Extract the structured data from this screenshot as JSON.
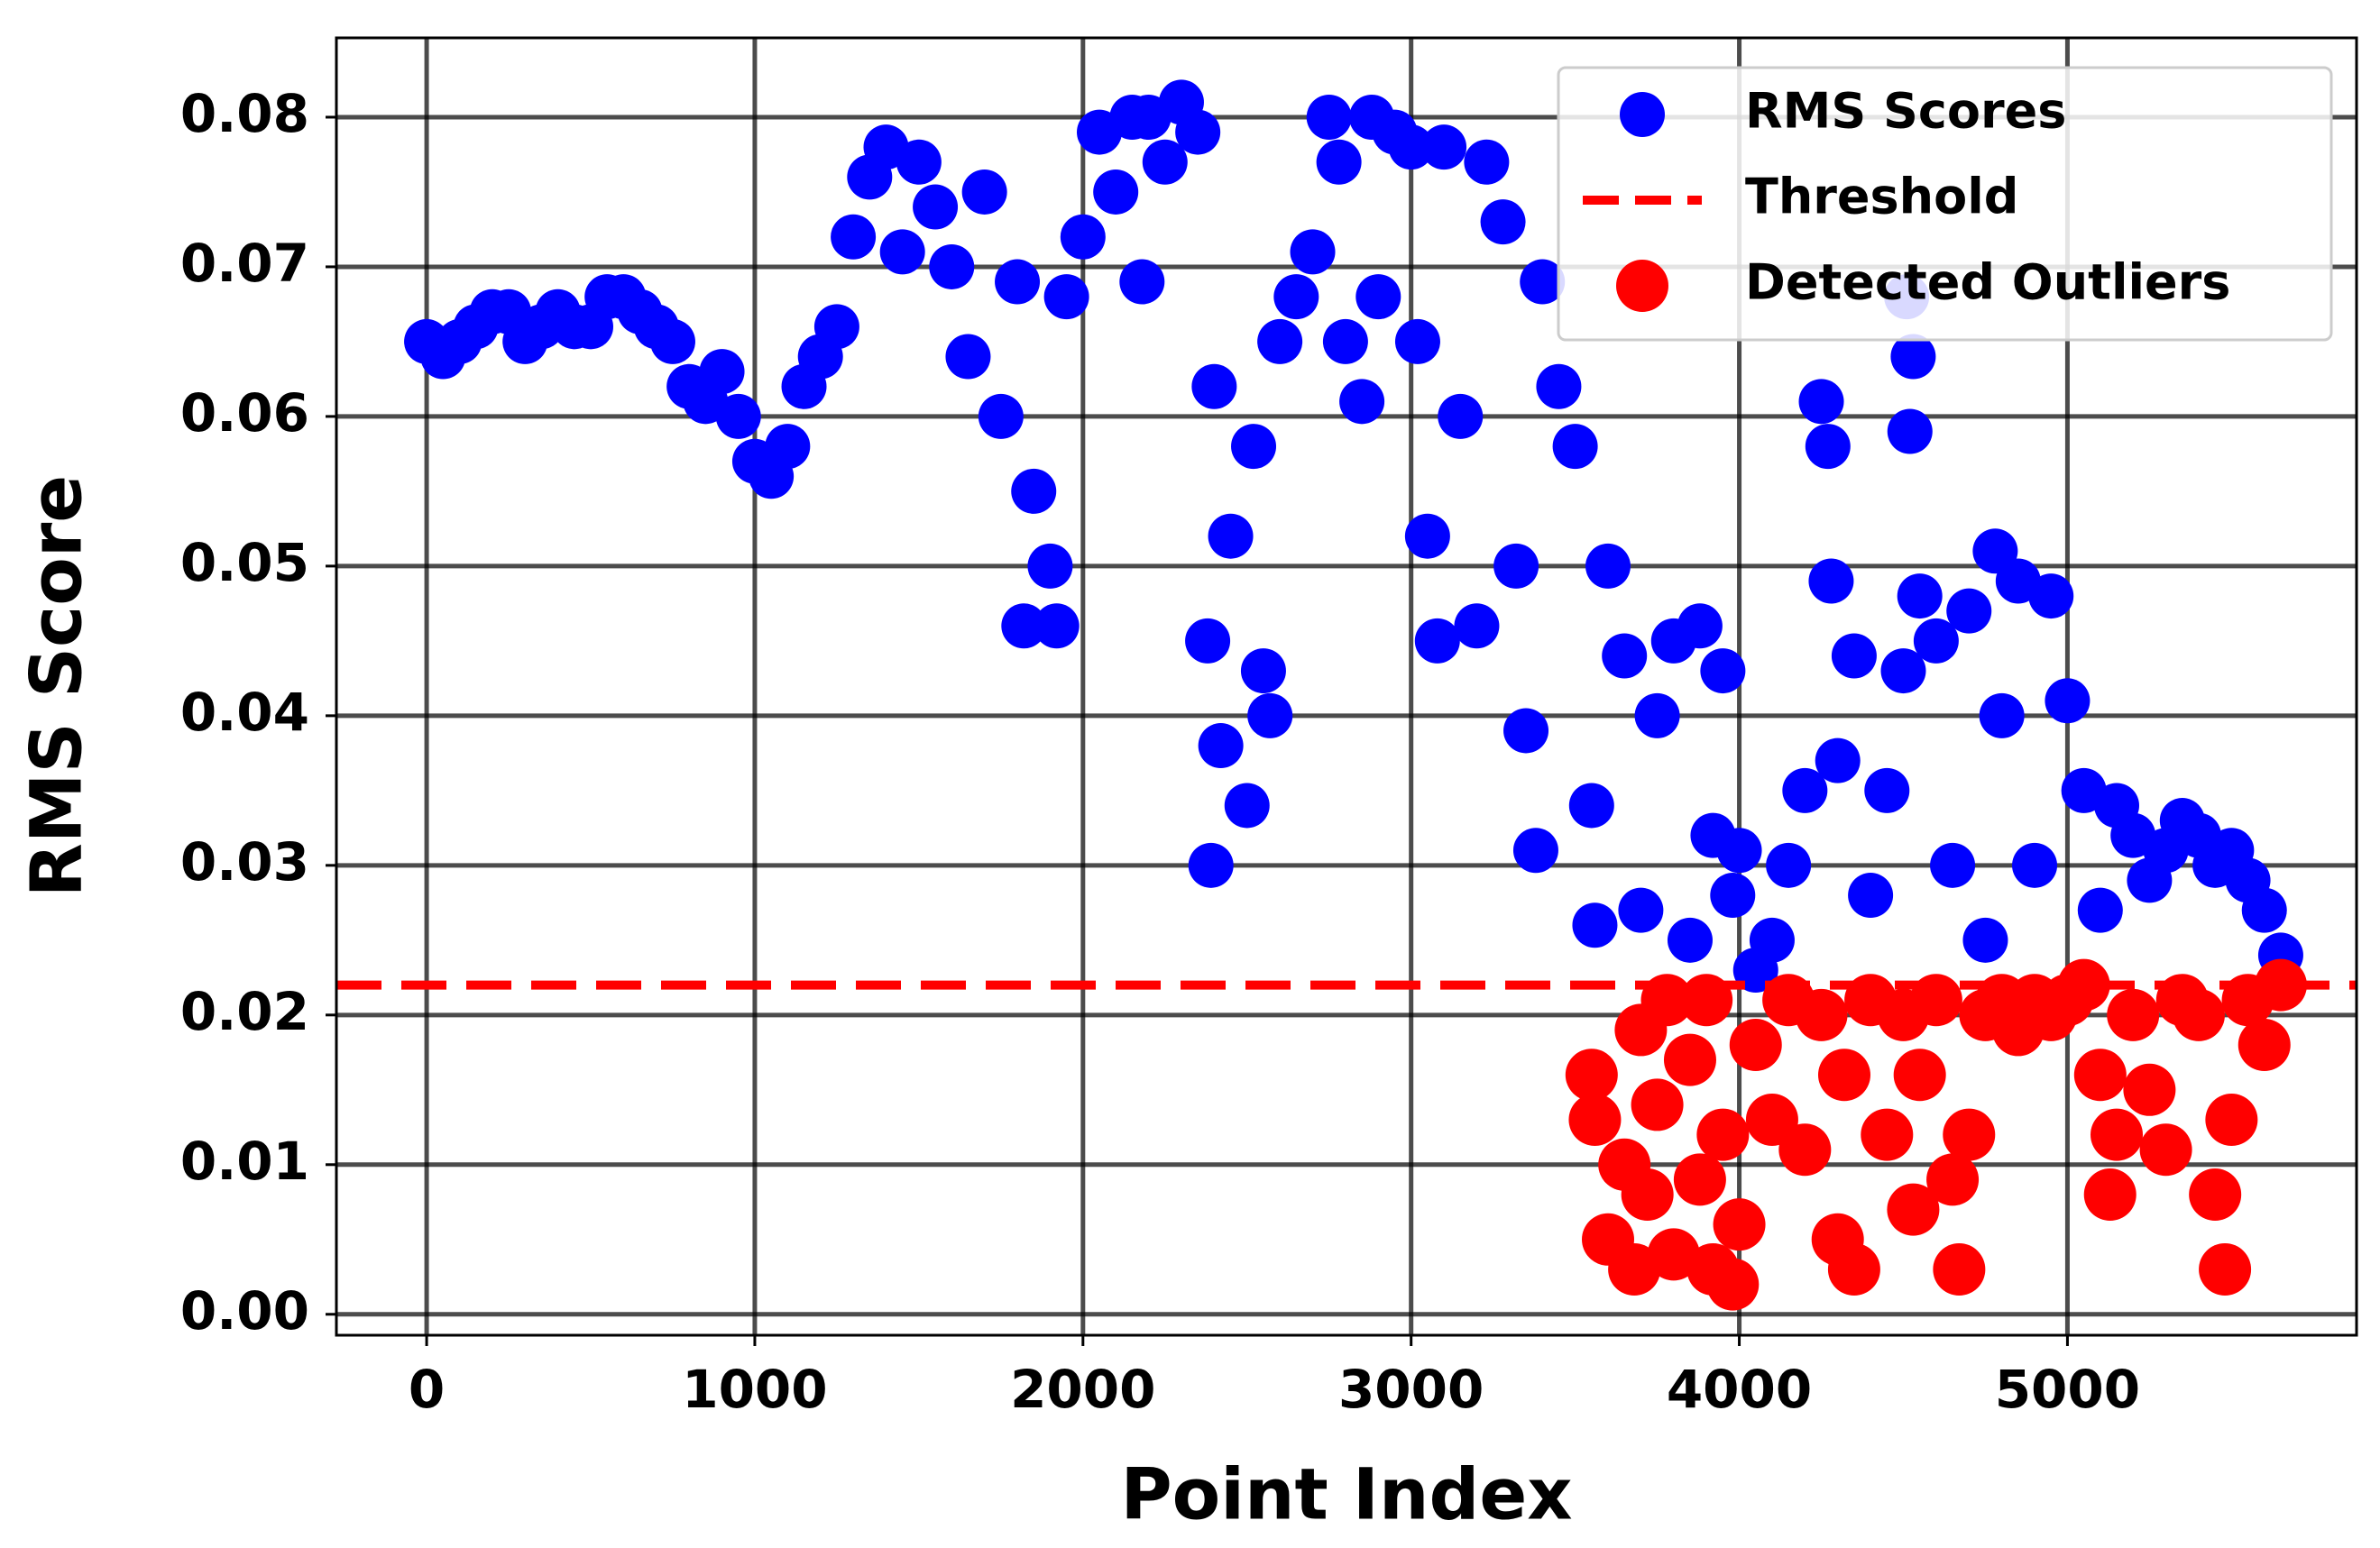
{
  "chart_data": {
    "type": "scatter",
    "xlabel": "Point Index",
    "ylabel": "RMS Score",
    "xlim": [
      -275,
      5881
    ],
    "ylim": [
      -0.0014,
      0.0853
    ],
    "xticks": [
      0,
      1000,
      2000,
      3000,
      4000,
      5000
    ],
    "yticks": [
      {
        "value": 0,
        "label": "0.00"
      },
      0.01,
      0.02,
      0.03,
      0.04,
      0.05,
      0.06,
      0.07,
      0.08
    ],
    "grid": true,
    "legend": "upper right",
    "threshold": {
      "name": "Threshold",
      "value": 0.022,
      "color": "#ff0000"
    },
    "series": [
      {
        "name": "RMS Scores",
        "color": "#0000ff",
        "x": [
          0,
          50,
          100,
          150,
          200,
          250,
          300,
          350,
          400,
          450,
          500,
          550,
          600,
          650,
          700,
          750,
          800,
          850,
          900,
          950,
          1000,
          1050,
          1100,
          1150,
          1200,
          1250,
          1300,
          1350,
          1400,
          1450,
          1500,
          1550,
          1600,
          1650,
          1700,
          1750,
          1800,
          1820,
          1850,
          1900,
          1920,
          1950,
          2000,
          2050,
          2100,
          2150,
          2180,
          2200,
          2250,
          2300,
          2350,
          2380,
          2390,
          2400,
          2420,
          2450,
          2500,
          2520,
          2550,
          2570,
          2600,
          2650,
          2700,
          2750,
          2780,
          2800,
          2850,
          2880,
          2900,
          2950,
          3000,
          3020,
          3050,
          3080,
          3100,
          3150,
          3200,
          3230,
          3280,
          3320,
          3350,
          3380,
          3400,
          3450,
          3500,
          3550,
          3560,
          3600,
          3650,
          3700,
          3750,
          3800,
          3850,
          3880,
          3920,
          3950,
          3980,
          4000,
          4050,
          4100,
          4150,
          4200,
          4250,
          4270,
          4280,
          4300,
          4350,
          4400,
          4450,
          4500,
          4510,
          4520,
          4530,
          4550,
          4600,
          4650,
          4700,
          4750,
          4780,
          4800,
          4850,
          4900,
          4950,
          5000,
          5050,
          5100,
          5150,
          5200,
          5250,
          5300,
          5350,
          5400,
          5450,
          5500,
          5550,
          5600,
          5650
        ],
        "values": [
          0.065,
          0.064,
          0.065,
          0.066,
          0.067,
          0.067,
          0.065,
          0.066,
          0.067,
          0.066,
          0.066,
          0.068,
          0.068,
          0.067,
          0.066,
          0.065,
          0.062,
          0.061,
          0.063,
          0.06,
          0.057,
          0.056,
          0.058,
          0.062,
          0.064,
          0.066,
          0.072,
          0.076,
          0.078,
          0.071,
          0.077,
          0.074,
          0.07,
          0.064,
          0.075,
          0.06,
          0.069,
          0.046,
          0.055,
          0.05,
          0.046,
          0.068,
          0.072,
          0.079,
          0.075,
          0.08,
          0.069,
          0.08,
          0.077,
          0.081,
          0.079,
          0.045,
          0.03,
          0.062,
          0.038,
          0.052,
          0.034,
          0.058,
          0.043,
          0.04,
          0.065,
          0.068,
          0.071,
          0.08,
          0.077,
          0.065,
          0.061,
          0.08,
          0.068,
          0.079,
          0.078,
          0.065,
          0.052,
          0.045,
          0.078,
          0.06,
          0.046,
          0.077,
          0.073,
          0.05,
          0.039,
          0.031,
          0.069,
          0.062,
          0.058,
          0.034,
          0.026,
          0.05,
          0.044,
          0.027,
          0.04,
          0.045,
          0.025,
          0.046,
          0.032,
          0.043,
          0.028,
          0.031,
          0.023,
          0.025,
          0.03,
          0.035,
          0.061,
          0.058,
          0.049,
          0.037,
          0.044,
          0.028,
          0.035,
          0.043,
          0.068,
          0.059,
          0.064,
          0.048,
          0.045,
          0.03,
          0.047,
          0.025,
          0.051,
          0.04,
          0.049,
          0.03,
          0.048,
          0.041,
          0.035,
          0.027,
          0.034,
          0.032,
          0.029,
          0.031,
          0.033,
          0.032,
          0.03,
          0.031,
          0.029,
          0.027,
          0.024
        ]
      },
      {
        "name": "Detected Outliers",
        "color": "#ff0000",
        "x": [
          3550,
          3560,
          3600,
          3650,
          3680,
          3700,
          3720,
          3750,
          3780,
          3800,
          3850,
          3880,
          3900,
          3920,
          3950,
          3980,
          4000,
          4050,
          4100,
          4150,
          4200,
          4250,
          4300,
          4320,
          4350,
          4400,
          4450,
          4500,
          4530,
          4550,
          4600,
          4650,
          4670,
          4700,
          4750,
          4800,
          4850,
          4900,
          4950,
          5000,
          5050,
          5100,
          5130,
          5150,
          5200,
          5250,
          5300,
          5350,
          5400,
          5450,
          5480,
          5500,
          5550,
          5600,
          5650
        ],
        "values": [
          0.016,
          0.013,
          0.005,
          0.01,
          0.003,
          0.019,
          0.008,
          0.014,
          0.021,
          0.004,
          0.017,
          0.009,
          0.021,
          0.003,
          0.012,
          0.002,
          0.006,
          0.018,
          0.013,
          0.021,
          0.011,
          0.02,
          0.005,
          0.016,
          0.003,
          0.021,
          0.012,
          0.02,
          0.007,
          0.016,
          0.021,
          0.009,
          0.003,
          0.012,
          0.02,
          0.021,
          0.019,
          0.021,
          0.02,
          0.021,
          0.022,
          0.016,
          0.008,
          0.012,
          0.02,
          0.015,
          0.011,
          0.021,
          0.02,
          0.008,
          0.003,
          0.013,
          0.021,
          0.018,
          0.022
        ]
      }
    ]
  }
}
